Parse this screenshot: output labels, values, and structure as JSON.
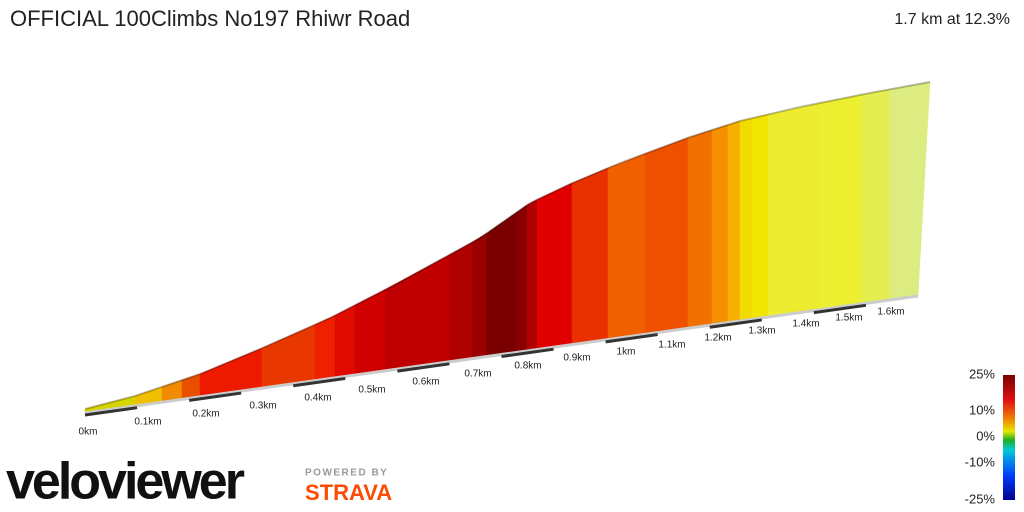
{
  "header": {
    "title": "OFFICIAL 100Climbs No197 Rhiwr Road",
    "summary": "1.7 km at 12.3%"
  },
  "distance_labels": [
    "0km",
    "0.1km",
    "0.2km",
    "0.3km",
    "0.4km",
    "0.5km",
    "0.6km",
    "0.7km",
    "0.8km",
    "0.9km",
    "1km",
    "1.1km",
    "1.2km",
    "1.3km",
    "1.4km",
    "1.5km",
    "1.6km"
  ],
  "legend": {
    "labels": [
      "25%",
      "10%",
      "0%",
      "-10%",
      "-25%"
    ]
  },
  "branding": {
    "logo": "veloviewer",
    "powered_by": "POWERED BY",
    "partner": "STRAVA"
  }
}
